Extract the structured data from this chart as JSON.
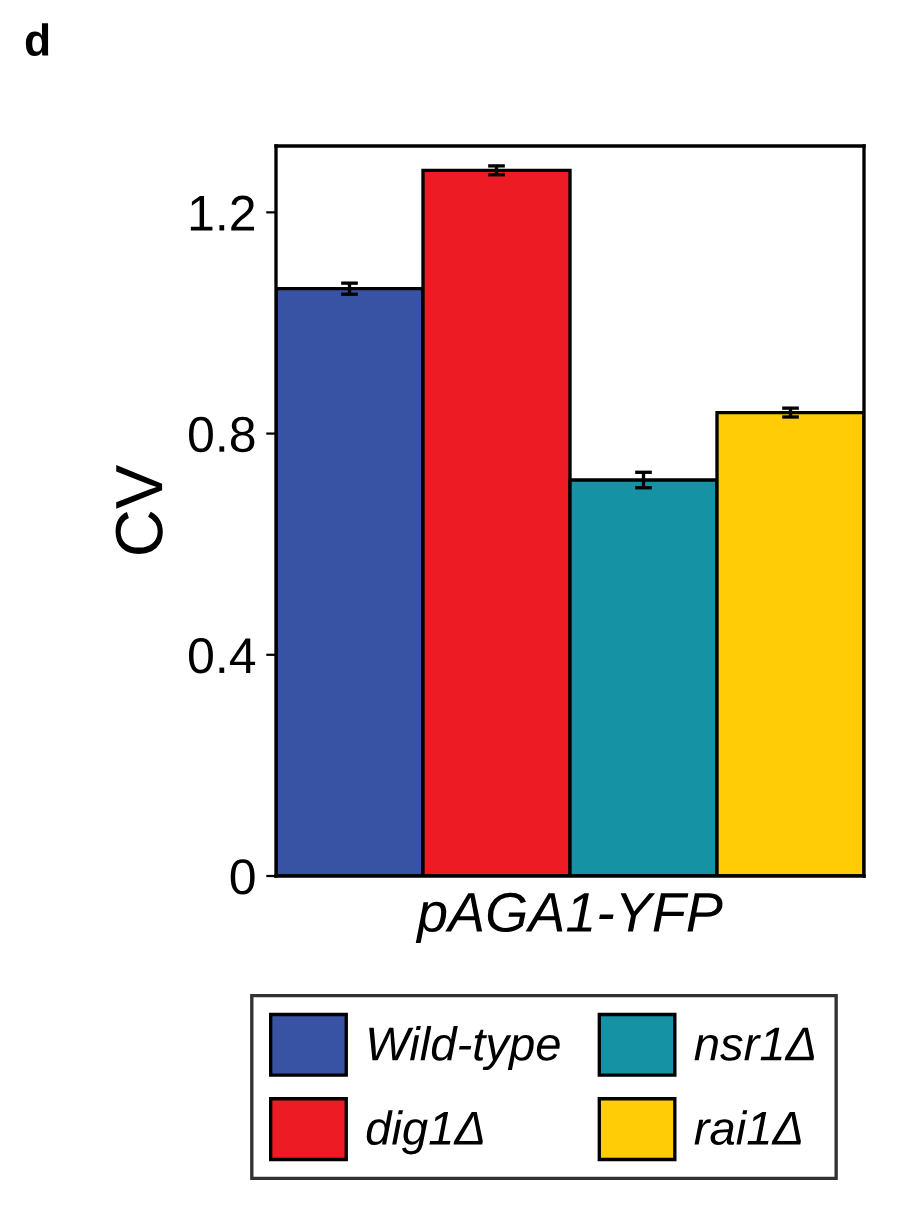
{
  "chart_data": {
    "type": "bar",
    "title": "d",
    "categories": [
      null
    ],
    "xlabel": "pAGA1-YFP",
    "ylabel": "CV",
    "ylim": [
      0,
      1.32
    ],
    "yticks": [
      0,
      0.4,
      0.8,
      1.2
    ],
    "grid": false,
    "legend": "bottom",
    "series": [
      {
        "name": "Wild-type",
        "color": "#3953a4",
        "values": [
          1.062
        ],
        "errors": [
          0.01
        ]
      },
      {
        "name": "dig1Δ",
        "color": "#ed1c24",
        "values": [
          1.276
        ],
        "errors": [
          0.008
        ]
      },
      {
        "name": "nsr1Δ",
        "color": "#1592a4",
        "values": [
          0.716
        ],
        "errors": [
          0.014
        ]
      },
      {
        "name": "rai1Δ",
        "color": "#ffcc05",
        "values": [
          0.838
        ],
        "errors": [
          0.008
        ]
      }
    ]
  }
}
